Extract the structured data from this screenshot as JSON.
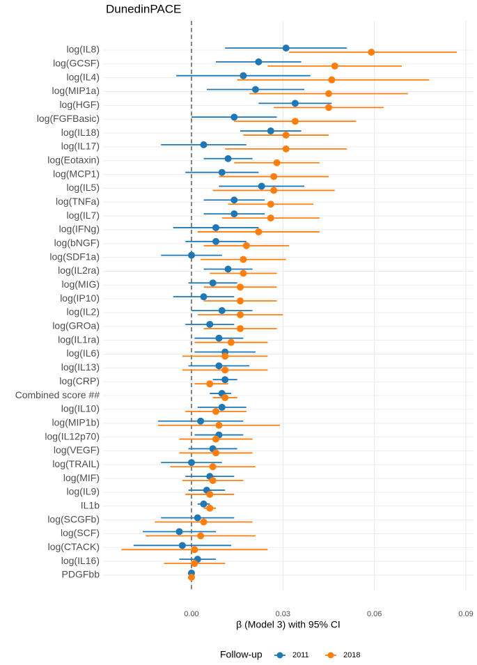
{
  "chart_data": {
    "type": "forest",
    "title": "DunedinPACE",
    "xlabel": "β (Model 3) with 95% CI",
    "legend_title": "Follow-up",
    "legend_position": "bottom",
    "grid": true,
    "reference_line": 0,
    "xlim": [
      -0.029,
      0.0925
    ],
    "xticks": [
      {
        "value": 0,
        "label": "0.00"
      },
      0.03,
      0.06,
      0.09
    ],
    "categories": [
      "log(IL8)",
      "log(GCSF)",
      "log(IL4)",
      "log(MIP1a)",
      "log(HGF)",
      "log(FGFBasic)",
      "log(IL18)",
      "log(IL17)",
      "log(Eotaxin)",
      "log(MCP1)",
      "log(IL5)",
      "log(TNFa)",
      "log(IL7)",
      "log(IFNg)",
      "log(bNGF)",
      "log(SDF1a)",
      "log(IL2ra)",
      "log(MIG)",
      "log(IP10)",
      "log(IL2)",
      "log(GROa)",
      "log(IL1ra)",
      "log(IL6)",
      "log(IL13)",
      "log(CRP)",
      "Combined score ##",
      "log(IL10)",
      "log(MIP1b)",
      "log(IL12p70)",
      "log(VEGF)",
      "log(TRAIL)",
      "log(MIF)",
      "log(IL9)",
      "IL1b",
      "log(SCGFb)",
      "log(SCF)",
      "log(CTACK)",
      "log(IL16)",
      "PDGFbb"
    ],
    "series": [
      {
        "name": "2011",
        "color": "#1f77b4",
        "values": [
          0.031,
          0.022,
          0.017,
          0.021,
          0.034,
          0.014,
          0.026,
          0.004,
          0.012,
          0.01,
          0.023,
          0.014,
          0.014,
          0.008,
          0.008,
          0.0,
          0.012,
          0.007,
          0.004,
          0.01,
          0.006,
          0.009,
          0.011,
          0.009,
          0.011,
          0.01,
          0.01,
          0.003,
          0.009,
          0.007,
          0.0,
          0.006,
          0.005,
          0.004,
          0.002,
          -0.004,
          -0.003,
          0.002,
          0.0
        ],
        "lower": [
          0.011,
          0.008,
          -0.005,
          0.005,
          0.022,
          0.0,
          0.016,
          -0.01,
          0.004,
          -0.002,
          0.009,
          0.004,
          0.004,
          -0.006,
          -0.002,
          -0.01,
          0.004,
          -0.001,
          -0.006,
          0.0,
          -0.002,
          0.001,
          0.001,
          -0.001,
          0.007,
          0.006,
          0.002,
          -0.011,
          0.001,
          -0.001,
          -0.01,
          -0.002,
          -0.001,
          0.002,
          -0.01,
          -0.016,
          -0.019,
          -0.004,
          0.0
        ],
        "upper": [
          0.051,
          0.036,
          0.039,
          0.037,
          0.046,
          0.028,
          0.036,
          0.018,
          0.02,
          0.022,
          0.037,
          0.024,
          0.024,
          0.022,
          0.018,
          0.01,
          0.02,
          0.015,
          0.014,
          0.02,
          0.014,
          0.017,
          0.021,
          0.019,
          0.015,
          0.013,
          0.018,
          0.017,
          0.017,
          0.015,
          0.01,
          0.014,
          0.011,
          0.006,
          0.014,
          0.008,
          0.013,
          0.008,
          0.0
        ]
      },
      {
        "name": "2018",
        "color": "#ff7f0e",
        "values": [
          0.059,
          0.047,
          0.046,
          0.045,
          0.045,
          0.034,
          0.031,
          0.031,
          0.028,
          0.027,
          0.027,
          0.026,
          0.026,
          0.022,
          0.018,
          0.017,
          0.017,
          0.016,
          0.016,
          0.016,
          0.016,
          0.013,
          0.011,
          0.011,
          0.006,
          0.011,
          0.008,
          0.009,
          0.008,
          0.008,
          0.007,
          0.007,
          0.006,
          0.006,
          0.004,
          0.003,
          0.001,
          0.001,
          0.0
        ],
        "lower": [
          0.032,
          0.025,
          0.015,
          0.019,
          0.027,
          0.014,
          0.017,
          0.011,
          0.014,
          0.009,
          0.007,
          0.012,
          0.01,
          0.002,
          0.004,
          0.003,
          0.006,
          0.004,
          0.004,
          0.002,
          0.004,
          0.001,
          -0.003,
          -0.003,
          0.001,
          0.007,
          -0.002,
          -0.011,
          -0.004,
          -0.004,
          -0.007,
          -0.003,
          -0.002,
          0.004,
          -0.012,
          -0.015,
          -0.023,
          -0.009,
          0.0
        ],
        "upper": [
          0.087,
          0.069,
          0.078,
          0.071,
          0.063,
          0.054,
          0.045,
          0.051,
          0.042,
          0.045,
          0.047,
          0.04,
          0.042,
          0.042,
          0.032,
          0.031,
          0.028,
          0.028,
          0.028,
          0.03,
          0.028,
          0.025,
          0.025,
          0.025,
          0.012,
          0.015,
          0.018,
          0.029,
          0.02,
          0.02,
          0.021,
          0.017,
          0.014,
          0.008,
          0.02,
          0.021,
          0.025,
          0.011,
          0.0
        ]
      }
    ]
  }
}
